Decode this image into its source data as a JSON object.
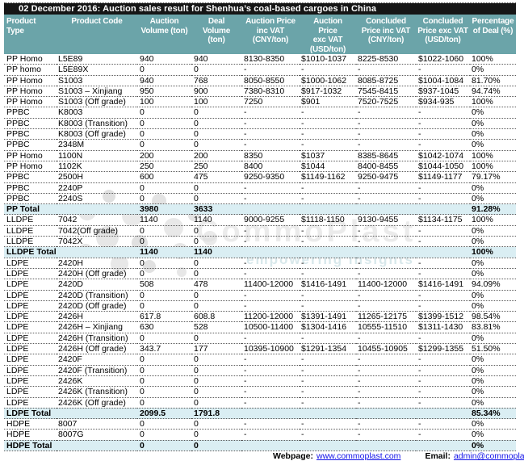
{
  "title": "02 December 2016: Auction sales result for Shenhua’s coal-based cargoes in China",
  "colors": {
    "teal": "#6ba4a9",
    "titlebg": "#161616",
    "totalbg": "#daeef3",
    "link": "#1212e8"
  },
  "watermark": {
    "brand": "CommoPlast",
    "tagline": "empowering insights",
    "logo_icon": "dots-cluster-icon"
  },
  "table": {
    "columns": [
      "Product\nType",
      "Product Code",
      "Auction\nVolume (ton)",
      "Deal\nVolume\n(ton)",
      "Auction Price\ninc VAT\n(CNY/ton)",
      "Auction\nPrice\nexc VAT\n(USD/ton)",
      "Concluded\nPrice inc VAT\n(CNY/ton)",
      "Concluded\nPrice exc VAT\n(USD/ton)",
      "Percentage\nof Deal (%)"
    ],
    "rows": [
      {
        "total": false,
        "cells": [
          "PP Homo",
          "L5E89",
          "940",
          "940",
          "8130-8350",
          "$1010-1037",
          "8225-8530",
          "$1022-1060",
          "100%"
        ]
      },
      {
        "total": false,
        "cells": [
          "PP homo",
          "L5E89X",
          "0",
          "0",
          "-",
          "-",
          "-",
          "-",
          "0%"
        ]
      },
      {
        "total": false,
        "cells": [
          "PP Homo",
          "S1003",
          "940",
          "768",
          "8050-8550",
          "$1000-1062",
          "8085-8725",
          "$1004-1084",
          "81.70%"
        ]
      },
      {
        "total": false,
        "cells": [
          "PP Homo",
          "S1003 – Xinjiang",
          "950",
          "900",
          "7380-8310",
          "$917-1032",
          "7545-8415",
          "$937-1045",
          "94.74%"
        ]
      },
      {
        "total": false,
        "cells": [
          "PP Homo",
          "S1003 (Off grade)",
          "100",
          "100",
          "7250",
          "$901",
          "7520-7525",
          "$934-935",
          "100%"
        ]
      },
      {
        "total": false,
        "cells": [
          "PPBC",
          "K8003",
          "0",
          "0",
          "-",
          "-",
          "-",
          "-",
          "0%"
        ]
      },
      {
        "total": false,
        "cells": [
          "PPBC",
          "K8003 (Transition)",
          "0",
          "0",
          "-",
          "-",
          "-",
          "-",
          "0%"
        ]
      },
      {
        "total": false,
        "cells": [
          "PPBC",
          "K8003 (Off grade)",
          "0",
          "0",
          "-",
          "-",
          "-",
          "-",
          "0%"
        ]
      },
      {
        "total": false,
        "cells": [
          "PPBC",
          "2348M",
          "0",
          "0",
          "-",
          "-",
          "-",
          "-",
          "0%"
        ]
      },
      {
        "total": false,
        "cells": [
          "PP Homo",
          "1100N",
          "200",
          "200",
          "8350",
          "$1037",
          "8385-8645",
          "$1042-1074",
          "100%"
        ]
      },
      {
        "total": false,
        "cells": [
          "PP Homo",
          "1102K",
          "250",
          "250",
          "8400",
          "$1044",
          "8400-8455",
          "$1044-1050",
          "100%"
        ]
      },
      {
        "total": false,
        "cells": [
          "PPBC",
          "2500H",
          "600",
          "475",
          "9250-9350",
          "$1149-1162",
          "9250-9475",
          "$1149-1177",
          "79.17%"
        ]
      },
      {
        "total": false,
        "cells": [
          "PPBC",
          "2240P",
          "0",
          "0",
          "-",
          "-",
          "-",
          "-",
          "0%"
        ]
      },
      {
        "total": false,
        "cells": [
          "PPBC",
          "2240S",
          "0",
          "0",
          "-",
          "-",
          "-",
          "-",
          "0%"
        ]
      },
      {
        "total": true,
        "cells": [
          "PP Total",
          "",
          "3980",
          "3633",
          "",
          "",
          "",
          "",
          "91.28%"
        ]
      },
      {
        "total": false,
        "cells": [
          "LLDPE",
          "7042",
          "1140",
          "1140",
          "9000-9255",
          "$1118-1150",
          "9130-9455",
          "$1134-1175",
          "100%"
        ]
      },
      {
        "total": false,
        "cells": [
          "LLDPE",
          "7042(Off grade)",
          "0",
          "0",
          "-",
          "-",
          "-",
          "-",
          "0%"
        ]
      },
      {
        "total": false,
        "cells": [
          "LLDPE",
          "7042X",
          "0",
          "0",
          "-",
          "-",
          "-",
          "-",
          "0%"
        ]
      },
      {
        "total": true,
        "cells": [
          "LLDPE Total",
          "",
          "1140",
          "1140",
          "",
          "",
          "",
          "",
          "100%"
        ]
      },
      {
        "total": false,
        "cells": [
          "LDPE",
          "2420H",
          "0",
          "0",
          "-",
          "-",
          "-",
          "-",
          "0%"
        ]
      },
      {
        "total": false,
        "cells": [
          "LDPE",
          "2420H (Off grade)",
          "0",
          "0",
          "-",
          "-",
          "-",
          "-",
          "0%"
        ]
      },
      {
        "total": false,
        "cells": [
          "LDPE",
          "2420D",
          "508",
          "478",
          "11400-12000",
          "$1416-1491",
          "11400-12000",
          "$1416-1491",
          "94.09%"
        ]
      },
      {
        "total": false,
        "cells": [
          "LDPE",
          "2420D (Transition)",
          "0",
          "0",
          "-",
          "-",
          "-",
          "-",
          "0%"
        ]
      },
      {
        "total": false,
        "cells": [
          "LDPE",
          "2420D (Off grade)",
          "0",
          "0",
          "-",
          "-",
          "-",
          "-",
          "0%"
        ]
      },
      {
        "total": false,
        "cells": [
          "LDPE",
          "2426H",
          "617.8",
          "608.8",
          "11200-12000",
          "$1391-1491",
          "11265-12175",
          "$1399-1512",
          "98.54%"
        ]
      },
      {
        "total": false,
        "cells": [
          "LDPE",
          "2426H – Xinjiang",
          "630",
          "528",
          "10500-11400",
          "$1304-1416",
          "10555-11510",
          "$1311-1430",
          "83.81%"
        ]
      },
      {
        "total": false,
        "cells": [
          "LDPE",
          "2426H (Transition)",
          "0",
          "0",
          "-",
          "-",
          "-",
          "-",
          "0%"
        ]
      },
      {
        "total": false,
        "cells": [
          "LDPE",
          "2426H (Off grade)",
          "343.7",
          "177",
          "10395-10900",
          "$1291-1354",
          "10455-10905",
          "$1299-1355",
          "51.50%"
        ]
      },
      {
        "total": false,
        "cells": [
          "LDPE",
          "2420F",
          "0",
          "0",
          "-",
          "-",
          "-",
          "-",
          "0%"
        ]
      },
      {
        "total": false,
        "cells": [
          "LDPE",
          "2420F (Transition)",
          "0",
          "0",
          "-",
          "-",
          "-",
          "-",
          "0%"
        ]
      },
      {
        "total": false,
        "cells": [
          "LDPE",
          "2426K",
          "0",
          "0",
          "-",
          "-",
          "-",
          "-",
          "0%"
        ]
      },
      {
        "total": false,
        "cells": [
          "LDPE",
          "2426K (Transition)",
          "0",
          "0",
          "-",
          "-",
          "-",
          "-",
          "0%"
        ]
      },
      {
        "total": false,
        "cells": [
          "LDPE",
          "2426K (Off grade)",
          "0",
          "0",
          "-",
          "-",
          "-",
          "-",
          "0%"
        ]
      },
      {
        "total": true,
        "cells": [
          "LDPE Total",
          "",
          "2099.5",
          "1791.8",
          "",
          "",
          "",
          "",
          "85.34%"
        ]
      },
      {
        "total": false,
        "cells": [
          "HDPE",
          "8007",
          "0",
          "0",
          "-",
          "-",
          "-",
          "-",
          "0%"
        ]
      },
      {
        "total": false,
        "cells": [
          "HDPE",
          "8007G",
          "0",
          "0",
          "-",
          "-",
          "-",
          "-",
          "0%"
        ]
      },
      {
        "total": true,
        "cells": [
          "HDPE Total",
          "",
          "0",
          "0",
          "",
          "",
          "",
          "",
          "0%"
        ]
      }
    ]
  },
  "footer": {
    "webpage_label": "Webpage:",
    "webpage_url": "www.commoplast.com",
    "email_label": "Email:",
    "email_value": "admin@commoplast.com"
  }
}
